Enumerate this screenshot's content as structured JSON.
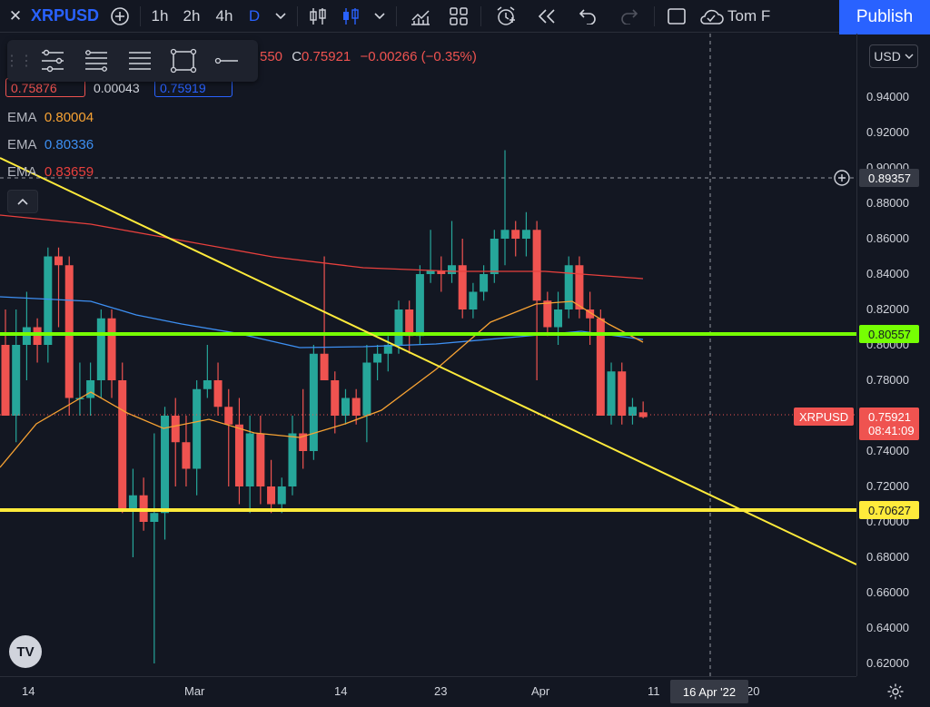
{
  "toolbar": {
    "symbol": "XRPUSD",
    "intervals": [
      "1h",
      "2h",
      "4h",
      "D"
    ],
    "user_label": "Tom F",
    "publish_label": "Publish"
  },
  "legend": {
    "ohlc_tail": "550",
    "close_label": "C",
    "close_value": "0.75921",
    "change": "−0.00266 (−0.35%)",
    "bid": "0.75876",
    "spread": "0.00043",
    "ask": "0.75919",
    "emas": [
      {
        "label": "EMA",
        "value": "0.80004",
        "color": "#f7a233"
      },
      {
        "label": "EMA",
        "value": "0.80336",
        "color": "#3d8ff2"
      },
      {
        "label": "EMA",
        "value": "0.83659",
        "color": "#e8403d"
      }
    ]
  },
  "price_axis": {
    "currency": "USD",
    "ticks": [
      "0.94000",
      "0.92000",
      "0.90000",
      "0.88000",
      "0.86000",
      "0.84000",
      "0.82000",
      "0.80000",
      "0.78000",
      "0.76000",
      "0.74000",
      "0.72000",
      "0.70000",
      "0.68000",
      "0.66000",
      "0.64000",
      "0.62000"
    ],
    "crosshair_price": "0.89357",
    "green_level": "0.80557",
    "yellow_level": "0.70627",
    "symbol_tag": "XRPUSD",
    "last_price": "0.75921",
    "countdown": "08:41:09"
  },
  "time_axis": {
    "labels": [
      "14",
      "Mar",
      "14",
      "23",
      "Apr",
      "11",
      "20"
    ],
    "crosshair_date": "16 Apr '22"
  },
  "colors": {
    "bull": "#26a69a",
    "bear": "#ef5350",
    "accent": "#2962ff",
    "green_line": "#76ff03",
    "yellow_line": "#ffeb3b"
  },
  "chart_data": {
    "type": "candlestick",
    "ylim": [
      0.61,
      0.96
    ],
    "candles": [
      [
        0.8,
        0.82,
        0.76,
        0.76
      ],
      [
        0.76,
        0.82,
        0.745,
        0.8
      ],
      [
        0.8,
        0.83,
        0.78,
        0.81
      ],
      [
        0.81,
        0.815,
        0.79,
        0.8
      ],
      [
        0.8,
        0.855,
        0.79,
        0.85
      ],
      [
        0.85,
        0.855,
        0.81,
        0.845
      ],
      [
        0.845,
        0.85,
        0.76,
        0.77
      ],
      [
        0.77,
        0.79,
        0.76,
        0.77
      ],
      [
        0.77,
        0.79,
        0.76,
        0.78
      ],
      [
        0.78,
        0.82,
        0.77,
        0.815
      ],
      [
        0.815,
        0.82,
        0.77,
        0.78
      ],
      [
        0.78,
        0.79,
        0.705,
        0.706
      ],
      [
        0.706,
        0.73,
        0.68,
        0.715
      ],
      [
        0.715,
        0.725,
        0.695,
        0.7
      ],
      [
        0.7,
        0.75,
        0.62,
        0.705
      ],
      [
        0.705,
        0.765,
        0.69,
        0.76
      ],
      [
        0.76,
        0.77,
        0.72,
        0.745
      ],
      [
        0.745,
        0.76,
        0.72,
        0.73
      ],
      [
        0.73,
        0.78,
        0.715,
        0.775
      ],
      [
        0.775,
        0.8,
        0.77,
        0.78
      ],
      [
        0.78,
        0.79,
        0.76,
        0.765
      ],
      [
        0.765,
        0.775,
        0.72,
        0.755
      ],
      [
        0.755,
        0.77,
        0.71,
        0.72
      ],
      [
        0.72,
        0.76,
        0.705,
        0.75
      ],
      [
        0.75,
        0.76,
        0.71,
        0.72
      ],
      [
        0.72,
        0.735,
        0.705,
        0.71
      ],
      [
        0.71,
        0.725,
        0.705,
        0.72
      ],
      [
        0.72,
        0.76,
        0.715,
        0.75
      ],
      [
        0.75,
        0.775,
        0.73,
        0.74
      ],
      [
        0.74,
        0.8,
        0.735,
        0.795
      ],
      [
        0.795,
        0.85,
        0.78,
        0.78
      ],
      [
        0.78,
        0.785,
        0.75,
        0.76
      ],
      [
        0.76,
        0.775,
        0.755,
        0.77
      ],
      [
        0.77,
        0.775,
        0.755,
        0.76
      ],
      [
        0.76,
        0.8,
        0.745,
        0.79
      ],
      [
        0.79,
        0.8,
        0.78,
        0.795
      ],
      [
        0.795,
        0.805,
        0.785,
        0.8
      ],
      [
        0.8,
        0.825,
        0.795,
        0.82
      ],
      [
        0.82,
        0.825,
        0.795,
        0.805
      ],
      [
        0.805,
        0.845,
        0.8,
        0.84
      ],
      [
        0.84,
        0.865,
        0.835,
        0.842
      ],
      [
        0.842,
        0.85,
        0.83,
        0.84
      ],
      [
        0.84,
        0.87,
        0.835,
        0.845
      ],
      [
        0.845,
        0.86,
        0.815,
        0.82
      ],
      [
        0.82,
        0.835,
        0.815,
        0.83
      ],
      [
        0.83,
        0.845,
        0.825,
        0.84
      ],
      [
        0.84,
        0.865,
        0.835,
        0.86
      ],
      [
        0.86,
        0.91,
        0.845,
        0.865
      ],
      [
        0.865,
        0.87,
        0.85,
        0.86
      ],
      [
        0.86,
        0.875,
        0.85,
        0.865
      ],
      [
        0.865,
        0.87,
        0.78,
        0.825
      ],
      [
        0.825,
        0.83,
        0.805,
        0.81
      ],
      [
        0.81,
        0.83,
        0.8,
        0.82
      ],
      [
        0.82,
        0.85,
        0.815,
        0.845
      ],
      [
        0.845,
        0.85,
        0.815,
        0.82
      ],
      [
        0.82,
        0.83,
        0.8,
        0.815
      ],
      [
        0.815,
        0.82,
        0.76,
        0.76
      ],
      [
        0.76,
        0.79,
        0.755,
        0.785
      ],
      [
        0.785,
        0.79,
        0.755,
        0.76
      ],
      [
        0.76,
        0.77,
        0.755,
        0.765
      ],
      [
        0.7619,
        0.768,
        0.7585,
        0.7592
      ]
    ]
  }
}
